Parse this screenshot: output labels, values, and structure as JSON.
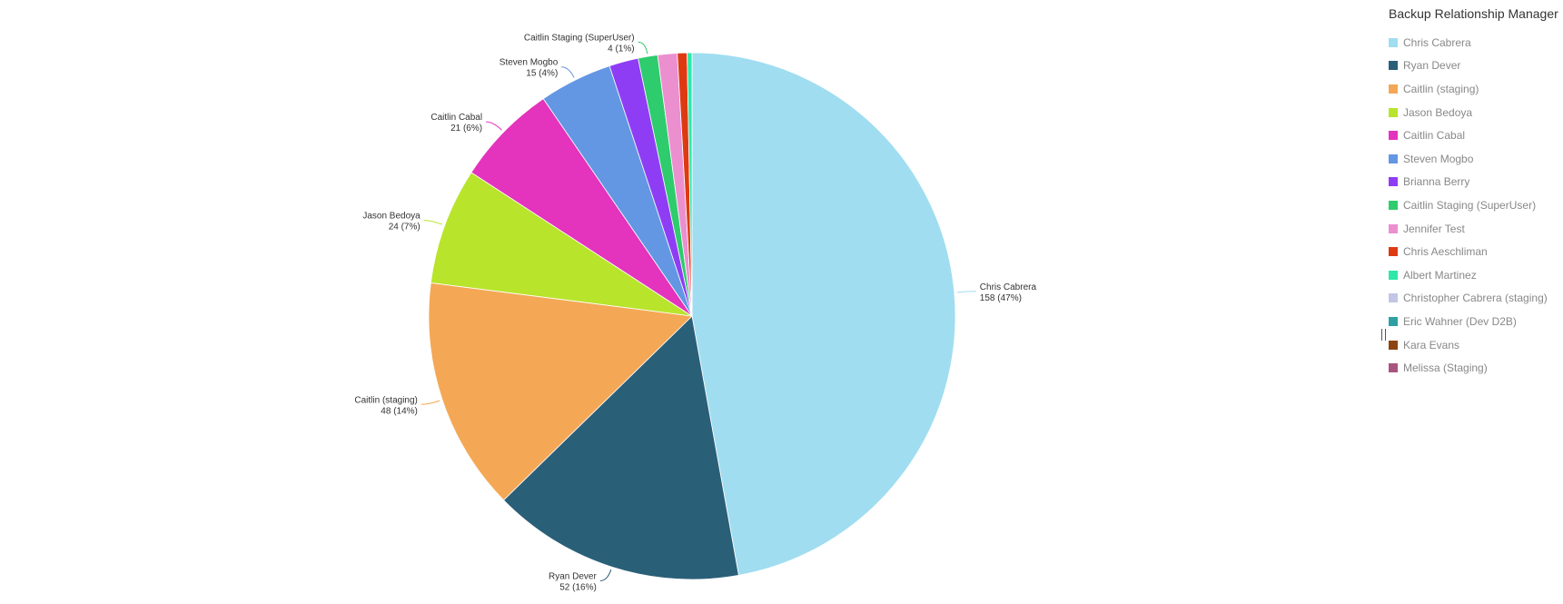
{
  "chart_data": {
    "type": "pie",
    "title": "",
    "legend_title": "Backup Relationship Manager",
    "legend_position": "right",
    "slices": [
      {
        "name": "Chris Cabrera",
        "value": 158,
        "label_value": "158 (47%)",
        "color": "#a0ddf0"
      },
      {
        "name": "Ryan Dever",
        "value": 52,
        "label_value": "52 (16%)",
        "color": "#2a5f78"
      },
      {
        "name": "Caitlin (staging)",
        "value": 48,
        "label_value": "48 (14%)",
        "color": "#f4a855"
      },
      {
        "name": "Jason Bedoya",
        "value": 24,
        "label_value": "24 (7%)",
        "color": "#b8e42c"
      },
      {
        "name": "Caitlin Cabal",
        "value": 21,
        "label_value": "21 (6%)",
        "color": "#e433bc"
      },
      {
        "name": "Steven Mogbo",
        "value": 15,
        "label_value": "15 (4%)",
        "color": "#6397e3"
      },
      {
        "name": "Brianna Berry",
        "value": 6,
        "label_value": "",
        "color": "#8f3df5"
      },
      {
        "name": "Caitlin Staging (SuperUser)",
        "value": 4,
        "label_value": "4 (1%)",
        "color": "#2ecc6c"
      },
      {
        "name": "Jennifer Test",
        "value": 4,
        "label_value": "",
        "color": "#ec8fcf"
      },
      {
        "name": "Chris Aeschliman",
        "value": 2,
        "label_value": "",
        "color": "#de3a12"
      },
      {
        "name": "Albert Martinez",
        "value": 1,
        "label_value": "",
        "color": "#2de8a8"
      },
      {
        "name": "Christopher Cabrera (staging)",
        "value": 0,
        "label_value": "",
        "color": "#c4c6e6"
      },
      {
        "name": "Eric Wahner (Dev D2B)",
        "value": 0,
        "label_value": "",
        "color": "#2ea0a3"
      },
      {
        "name": "Kara Evans",
        "value": 0,
        "label_value": "",
        "color": "#8b4412"
      },
      {
        "name": "Melissa (Staging)",
        "value": 0,
        "label_value": "",
        "color": "#a8547e"
      }
    ]
  }
}
